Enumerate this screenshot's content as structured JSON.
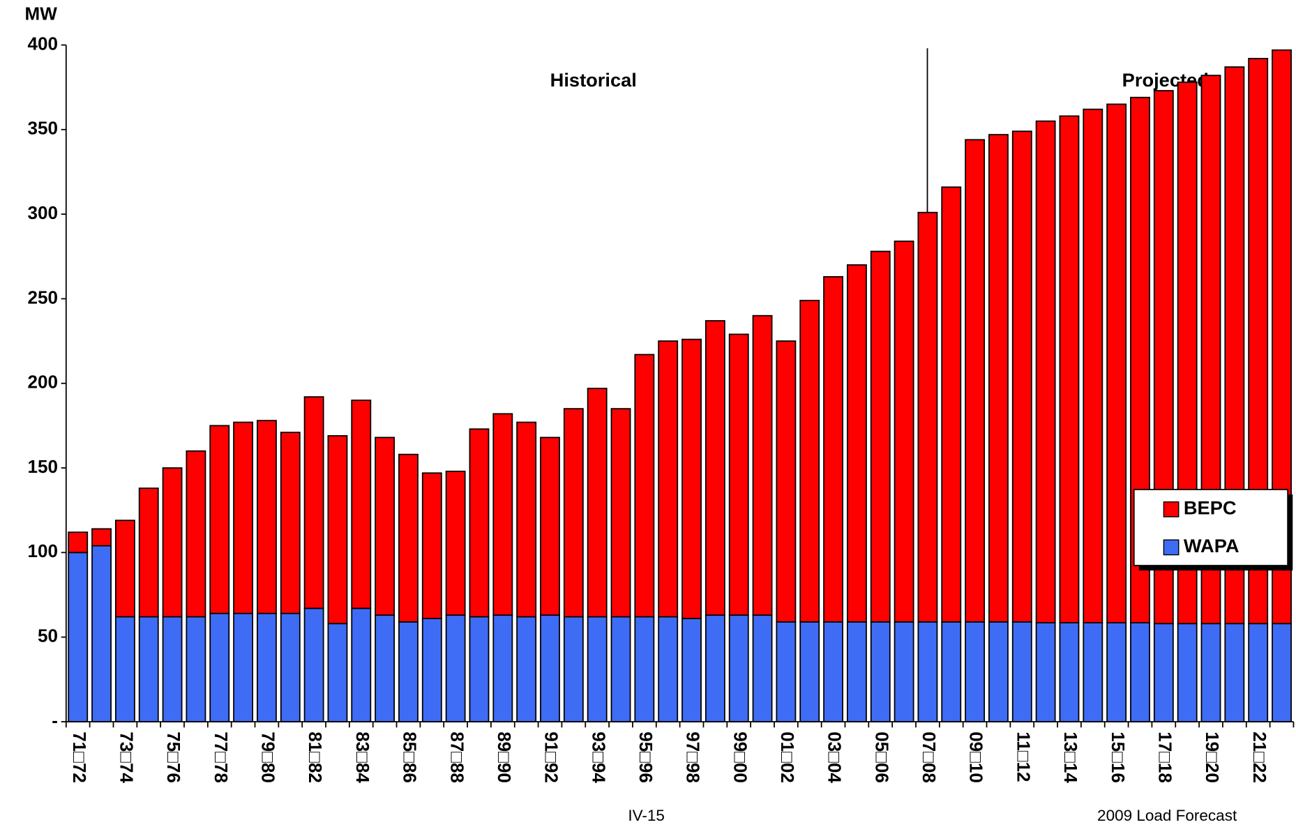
{
  "chart_data": {
    "type": "stacked_bar",
    "y_label": "MW",
    "annotations": [
      "Historical",
      "Projected"
    ],
    "footer_left": "IV-15",
    "footer_right": "2009 Load Forecast",
    "categories": [
      "71□72",
      null,
      "73□74",
      null,
      "75□76",
      null,
      "77□78",
      null,
      "79□80",
      null,
      "81□82",
      null,
      "83□84",
      null,
      "85□86",
      null,
      "87□88",
      null,
      "89□90",
      null,
      "91□92",
      null,
      "93□94",
      null,
      "95□96",
      null,
      "97□98",
      null,
      "99□00",
      null,
      "01□02",
      null,
      "03□04",
      null,
      "05□06",
      null,
      "07□08",
      null,
      "09□10",
      null,
      "11□12",
      null,
      "13□14",
      null,
      "15□16",
      null,
      "17□18",
      null,
      "19□20",
      null,
      "21□22",
      null
    ],
    "series": [
      {
        "name": "WAPA",
        "color": "#3f6cf5",
        "values": [
          100,
          104,
          62,
          62,
          62,
          62,
          64,
          64,
          64,
          64,
          67,
          58,
          67,
          63,
          59,
          61,
          63,
          62,
          63,
          62,
          63,
          62,
          62,
          62,
          62,
          62,
          61,
          63,
          63,
          63,
          59,
          59,
          59,
          59,
          59,
          59,
          59,
          59,
          59,
          59,
          59,
          58.5,
          58.5,
          58.5,
          58.5,
          58.5,
          58,
          58,
          58,
          58,
          58,
          58
        ]
      },
      {
        "name": "BEPC",
        "color": "#ff0000",
        "values": [
          12,
          10,
          57,
          76,
          88,
          98,
          111,
          113,
          114,
          107,
          125,
          111,
          123,
          105,
          99,
          86,
          85,
          111,
          119,
          115,
          105,
          123,
          135,
          123,
          155,
          163,
          165,
          174,
          166,
          177,
          166,
          190,
          204,
          211,
          219,
          225,
          242,
          257,
          285,
          288,
          290,
          296.5,
          299.5,
          303.5,
          306.5,
          310.5,
          315,
          320,
          324,
          329,
          334,
          339
        ]
      }
    ],
    "ylim": [
      0,
      400
    ],
    "yticks": [
      {
        "value": 0,
        "label": "-"
      },
      50,
      100,
      150,
      200,
      250,
      300,
      350,
      400
    ],
    "legend_order": [
      "BEPC",
      "WAPA"
    ],
    "legend": "right"
  }
}
